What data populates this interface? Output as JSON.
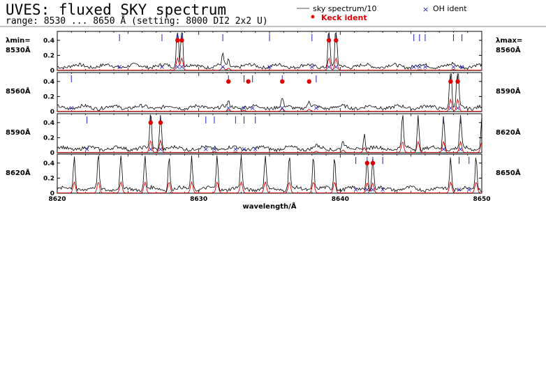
{
  "header": {
    "title": "UVES: fluxed SKY spectrum",
    "subtitle": "range: 8530 ... 8650 Å (setting: 8000 DI2 2x2 U)"
  },
  "legend": {
    "sky": "sky spectrum/10",
    "oh": "OH ident",
    "keck": "Keck ident"
  },
  "side_labels": {
    "lambda_min": "λmin=",
    "lambda_max": "λmax="
  },
  "colors": {
    "sky": "#000000",
    "model": "#e00000",
    "oh": "#2020c0",
    "keck": "#e00000",
    "axis": "#000000"
  },
  "chart_data": {
    "type": "line",
    "xlabel": "wavelength/Å",
    "xlim": [
      8620,
      8650
    ],
    "xticks": [
      "8620",
      "8630",
      "8640",
      "8650"
    ],
    "ylim": [
      0,
      0.5
    ],
    "yticks": [
      "0",
      "0.2",
      "0.4"
    ],
    "panels": [
      {
        "lmin": "8530Å",
        "lmax": "8560Å",
        "start": 8530,
        "end": 8560,
        "lines": [
          {
            "x": 8538.5,
            "h": 0.7,
            "oh": true
          },
          {
            "x": 8538.8,
            "h": 0.7,
            "oh": true
          },
          {
            "x": 8541.7,
            "h": 0.15,
            "oh": true
          },
          {
            "x": 8542.1,
            "h": 0.08,
            "oh": false
          },
          {
            "x": 8549.2,
            "h": 0.6,
            "oh": true
          },
          {
            "x": 8549.7,
            "h": 0.6,
            "oh": true
          },
          {
            "x": 8555.6,
            "h": 0.02,
            "oh": true
          },
          {
            "x": 8558.0,
            "h": 0.03,
            "oh": true
          }
        ],
        "keck": [
          8538.5,
          8538.8,
          8549.2,
          8549.7
        ],
        "oh_only": [
          8534.4,
          8537.4,
          8545.0,
          8548.0,
          8555.2,
          8556.0,
          8558.6
        ]
      },
      {
        "lmin": "8560Å",
        "lmax": "8590Å",
        "start": 8560,
        "end": 8590,
        "lines": [
          {
            "x": 8572.1,
            "h": 0.06,
            "oh": true
          },
          {
            "x": 8573.2,
            "h": 0.04,
            "oh": true
          },
          {
            "x": 8575.9,
            "h": 0.11,
            "oh": true
          },
          {
            "x": 8577.8,
            "h": 0.08,
            "oh": false
          },
          {
            "x": 8587.8,
            "h": 0.8,
            "oh": true
          },
          {
            "x": 8588.3,
            "h": 0.8,
            "oh": true
          }
        ],
        "keck": [
          8572.1,
          8573.5,
          8575.9,
          8577.8,
          8587.8,
          8588.3
        ],
        "oh_only": [
          8561.0,
          8573.8,
          8578.3
        ]
      },
      {
        "lmin": "8590Å",
        "lmax": "8620Å",
        "start": 8590,
        "end": 8620,
        "lines": [
          {
            "x": 8596.6,
            "h": 0.5,
            "oh": true
          },
          {
            "x": 8597.3,
            "h": 0.5,
            "oh": true
          },
          {
            "x": 8601.1,
            "h": 0.03,
            "oh": true
          },
          {
            "x": 8602.6,
            "h": 0.02,
            "oh": true
          },
          {
            "x": 8608.3,
            "h": 0.05,
            "oh": false
          },
          {
            "x": 8610.2,
            "h": 0.1,
            "oh": false
          },
          {
            "x": 8611.7,
            "h": 0.2,
            "oh": false
          },
          {
            "x": 8614.4,
            "h": 0.45,
            "oh": false
          },
          {
            "x": 8615.5,
            "h": 0.45,
            "oh": false
          },
          {
            "x": 8617.3,
            "h": 0.45,
            "oh": true
          },
          {
            "x": 8618.5,
            "h": 0.45,
            "oh": true
          },
          {
            "x": 8620.0,
            "h": 0.45,
            "oh": false
          }
        ],
        "keck": [
          8596.6,
          8597.3
        ],
        "oh_only": [
          8592.1,
          8600.5,
          8603.2,
          8604.0
        ]
      },
      {
        "lmin": "8620Å",
        "lmax": "8650Å",
        "start": 8620,
        "end": 8650,
        "lines": [
          {
            "x": 8621.2,
            "h": 0.45,
            "oh": false
          },
          {
            "x": 8622.9,
            "h": 0.45,
            "oh": false
          },
          {
            "x": 8624.5,
            "h": 0.45,
            "oh": false
          },
          {
            "x": 8626.2,
            "h": 0.45,
            "oh": false
          },
          {
            "x": 8627.9,
            "h": 0.45,
            "oh": false
          },
          {
            "x": 8629.5,
            "h": 0.45,
            "oh": false
          },
          {
            "x": 8631.3,
            "h": 0.45,
            "oh": false
          },
          {
            "x": 8633.0,
            "h": 0.45,
            "oh": false
          },
          {
            "x": 8634.7,
            "h": 0.45,
            "oh": false
          },
          {
            "x": 8636.4,
            "h": 0.45,
            "oh": false
          },
          {
            "x": 8638.1,
            "h": 0.45,
            "oh": false
          },
          {
            "x": 8639.6,
            "h": 0.45,
            "oh": false
          },
          {
            "x": 8641.9,
            "h": 0.42,
            "oh": true
          },
          {
            "x": 8642.3,
            "h": 0.42,
            "oh": true
          },
          {
            "x": 8647.8,
            "h": 0.45,
            "oh": false
          },
          {
            "x": 8649.6,
            "h": 0.45,
            "oh": false
          }
        ],
        "keck": [
          8641.9,
          8642.3
        ],
        "oh_only": [
          8641.1,
          8643.0,
          8648.4,
          8649.1
        ]
      }
    ]
  }
}
